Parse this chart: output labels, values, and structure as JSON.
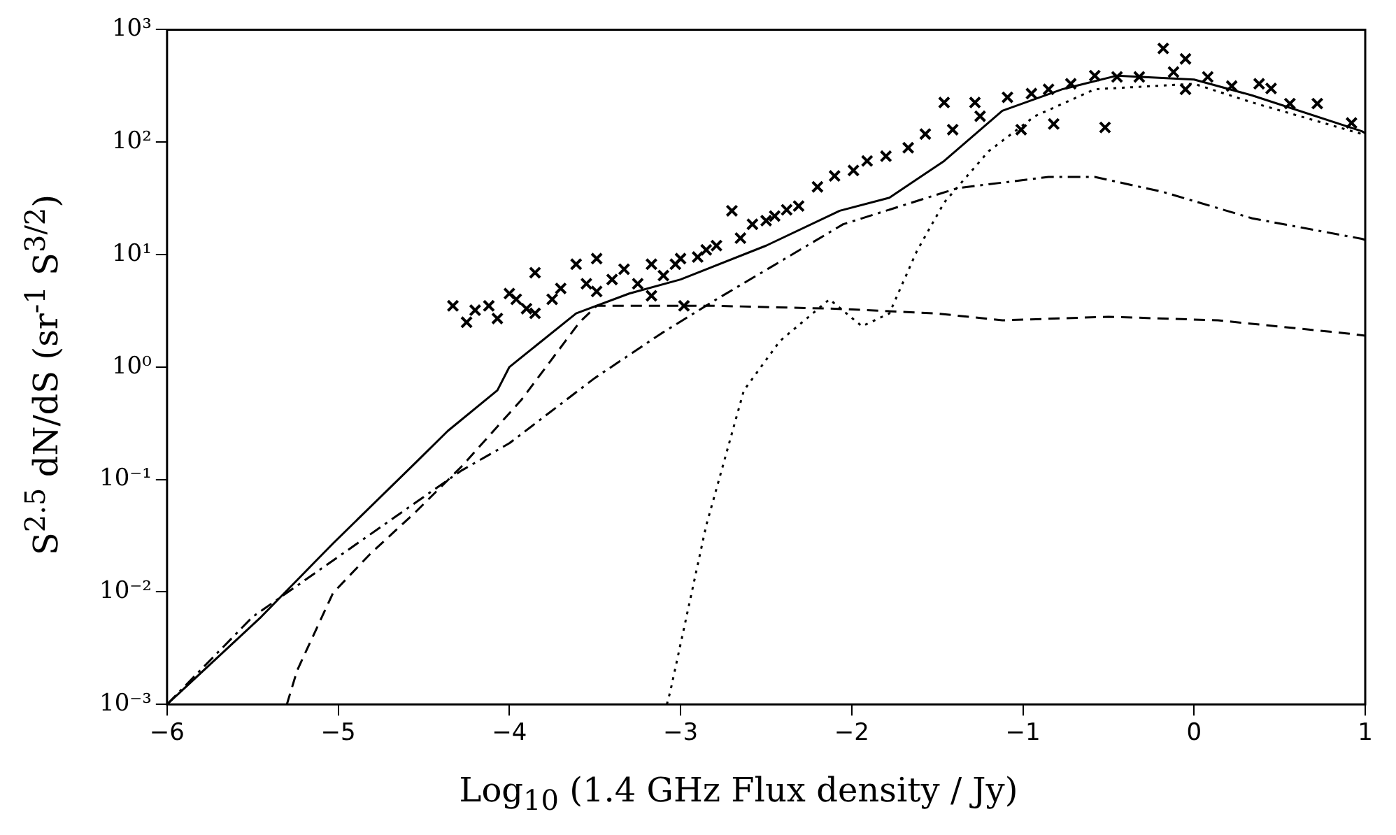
{
  "chart_data": {
    "type": "line",
    "xlabel": "Log$_{10}$ (1.4 GHz Flux density / Jy)",
    "ylabel": "S$^{2.5}$ dN/dS (sr$^{-1}$ S$^{3/2}$)",
    "xlim": [
      -6,
      1
    ],
    "xticks": [
      -6,
      -5,
      -4,
      -3,
      -2,
      -1,
      0,
      1
    ],
    "ylim": [
      0.001,
      1000
    ],
    "yticks": [
      {
        "value": 0.001,
        "label": "10⁻³"
      },
      {
        "value": 0.01,
        "label": "10⁻²"
      },
      {
        "value": 0.1,
        "label": "10⁻¹"
      },
      {
        "value": 1,
        "label": "10⁰"
      },
      {
        "value": 10,
        "label": "10¹"
      },
      {
        "value": 100,
        "label": "10²"
      },
      {
        "value": 1000,
        "label": "10³"
      }
    ],
    "log": "y",
    "grid": false,
    "legend": false,
    "series": [
      {
        "color": "#000000",
        "line_style": "solid",
        "marker": "none",
        "x": [
          -6,
          -5.45,
          -5.03,
          -4.55,
          -4.36,
          -4.07,
          -4,
          -3.61,
          -3.3,
          -3,
          -2.5,
          -2.07,
          -1.78,
          -1.46,
          -1.12,
          -0.77,
          -0.45,
          0,
          0.34,
          0.98,
          1
        ],
        "values": [
          0.001,
          0.006,
          0.027,
          0.14,
          0.27,
          0.62,
          1.0,
          3.0,
          4.5,
          6,
          12,
          24.5,
          32,
          68,
          190,
          295,
          390,
          360,
          260,
          125,
          120
        ]
      },
      {
        "color": "#000000",
        "line_style": "dashed",
        "marker": "none",
        "x": [
          -5.3,
          -5.24,
          -5.03,
          -4.81,
          -4.55,
          -4.28,
          -3.93,
          -3.59,
          -3.49,
          -2.79,
          -2.1,
          -1.51,
          -1.12,
          -0.5,
          0.14,
          0.88,
          1
        ],
        "values": [
          0.001,
          0.002,
          0.0098,
          0.022,
          0.051,
          0.13,
          0.51,
          2.5,
          3.5,
          3.5,
          3.3,
          3.0,
          2.6,
          2.8,
          2.6,
          2.0,
          1.9
        ]
      },
      {
        "color": "#000000",
        "line_style": "dotted",
        "marker": "none",
        "x": [
          -3.08,
          -3.06,
          -2.85,
          -2.63,
          -2.42,
          -2.13,
          -1.94,
          -1.78,
          -1.62,
          -1.46,
          -1.2,
          -0.93,
          -0.58,
          0,
          0.34,
          0.98,
          1
        ],
        "values": [
          0.001,
          0.0013,
          0.039,
          0.62,
          1.7,
          4.0,
          2.3,
          3.0,
          10.7,
          29,
          83,
          170,
          295,
          330,
          225,
          118,
          115
        ]
      },
      {
        "color": "#000000",
        "line_style": "dashdot",
        "marker": "none",
        "x": [
          -6,
          -5.5,
          -4.55,
          -4.28,
          -4,
          -3.5,
          -3.11,
          -2.79,
          -2.05,
          -1.38,
          -0.85,
          -0.58,
          -0.18,
          0.34,
          0.98,
          1
        ],
        "values": [
          0.001,
          0.006,
          0.062,
          0.12,
          0.21,
          0.8,
          2.0,
          4.0,
          18.6,
          39,
          49,
          49,
          36,
          21,
          13.8,
          13.5
        ]
      },
      {
        "type": "scatter",
        "color": "#000000",
        "marker": "cross",
        "x": [
          -4.33,
          -4.25,
          -4.2,
          -4.12,
          -4.07,
          -4.0,
          -3.96,
          -3.9,
          -3.85,
          -3.85,
          -3.75,
          -3.7,
          -3.61,
          -3.55,
          -3.49,
          -3.49,
          -3.4,
          -3.33,
          -3.25,
          -3.17,
          -3.17,
          -3.1,
          -3.03,
          -3.0,
          -2.98,
          -2.9,
          -2.85,
          -2.79,
          -2.7,
          -2.65,
          -2.58,
          -2.5,
          -2.45,
          -2.38,
          -2.31,
          -2.2,
          -2.1,
          -1.99,
          -1.91,
          -1.8,
          -1.67,
          -1.57,
          -1.46,
          -1.41,
          -1.28,
          -1.25,
          -1.09,
          -1.01,
          -0.95,
          -0.85,
          -0.82,
          -0.72,
          -0.58,
          -0.52,
          -0.45,
          -0.32,
          -0.18,
          -0.12,
          -0.05,
          -0.05,
          0.08,
          0.22,
          0.38,
          0.45,
          0.56,
          0.72,
          0.92
        ],
        "values": [
          3.5,
          2.5,
          3.2,
          3.5,
          2.7,
          4.5,
          4.0,
          3.3,
          6.9,
          3.0,
          4.0,
          5.0,
          8.2,
          5.5,
          9.2,
          4.7,
          6.0,
          7.4,
          5.5,
          8.2,
          4.3,
          6.5,
          8.2,
          9.2,
          3.5,
          9.5,
          11,
          12,
          24.5,
          14,
          18.6,
          20,
          22,
          25,
          27,
          40,
          50,
          56,
          68,
          75,
          89,
          118,
          225,
          129,
          225,
          170,
          250,
          129,
          270,
          295,
          145,
          330,
          390,
          135,
          380,
          380,
          680,
          420,
          550,
          295,
          380,
          315,
          330,
          300,
          220,
          220,
          148
        ]
      }
    ]
  }
}
